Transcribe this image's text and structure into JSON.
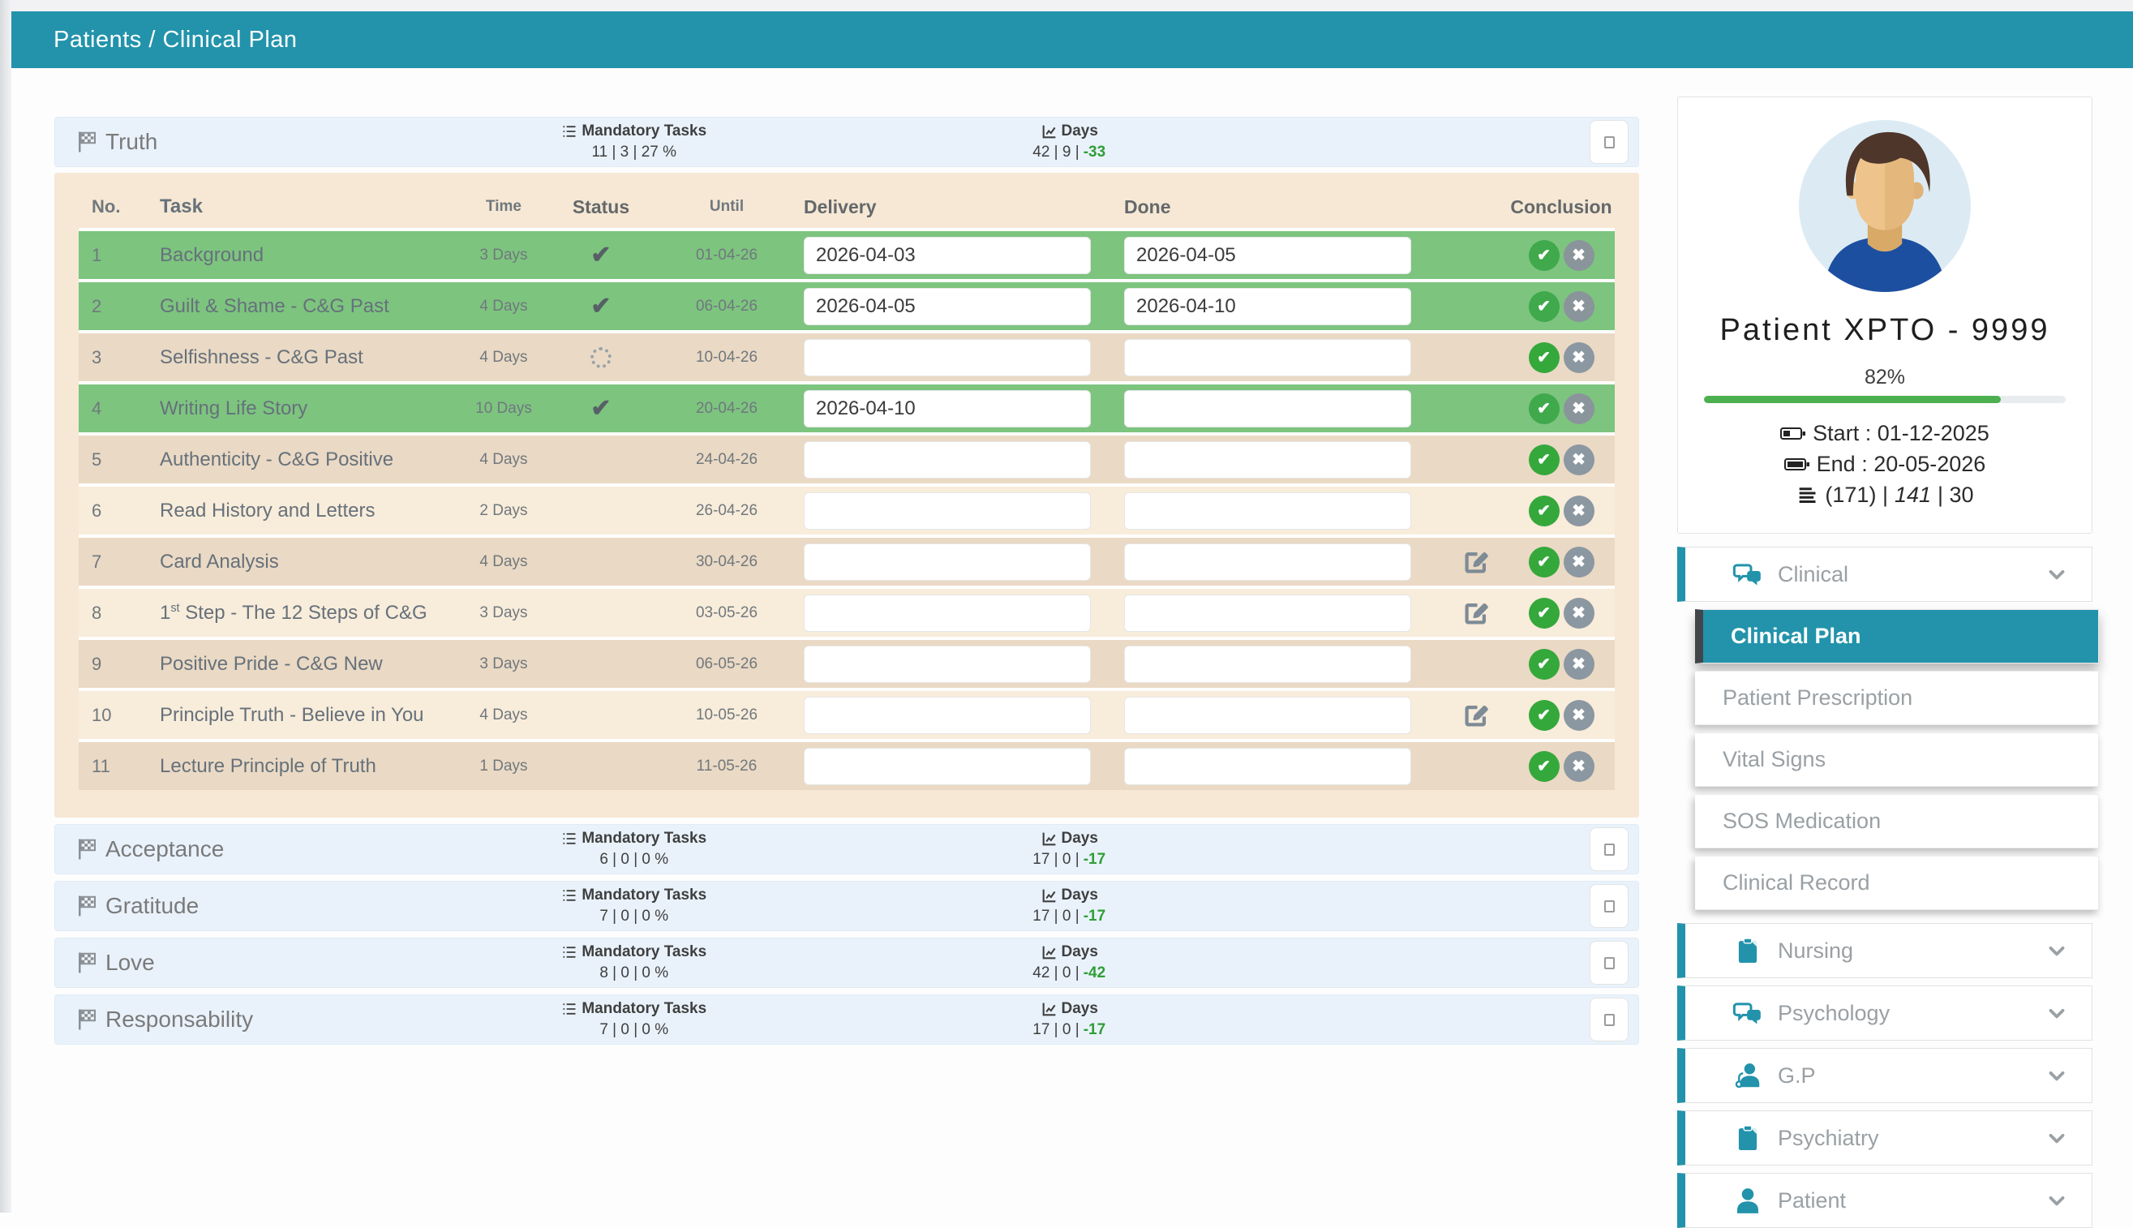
{
  "colors": {
    "accent": "#2293ab",
    "row_green": "#7dc47f",
    "row_dark": "#ead9c4",
    "row_light": "#f8ecda",
    "panel_blue": "#e9f2fb",
    "ok_green": "#35a83c",
    "no_gray": "#8b97a1",
    "progress_green": "#4caf50",
    "negative_days_green": "#2f9e36"
  },
  "breadcrumb": {
    "path": "Patients  /  Clinical Plan"
  },
  "labels": {
    "mandatory_tasks": "Mandatory Tasks",
    "days": "Days"
  },
  "truth": {
    "title": "Truth",
    "mandatory_value": "11 | 3 | 27 %",
    "days_value": "42 | 9 |",
    "days_negative": "-33",
    "columns": {
      "no": "No.",
      "task": "Task",
      "time": "Time",
      "status": "Status",
      "until": "Until",
      "delivery": "Delivery",
      "done": "Done",
      "conclusion": "Conclusion"
    },
    "rows": [
      {
        "no": "1",
        "task": "Background",
        "time": "3 Days",
        "status": "check",
        "until": "01-04-26",
        "delivery": "2026-04-03",
        "done": "2026-04-05",
        "highlight": "green",
        "edit": false
      },
      {
        "no": "2",
        "task": "Guilt & Shame - C&G Past",
        "time": "4 Days",
        "status": "check",
        "until": "06-04-26",
        "delivery": "2026-04-05",
        "done": "2026-04-10",
        "highlight": "green",
        "edit": false
      },
      {
        "no": "3",
        "task": "Selfishness - C&G Past",
        "time": "4 Days",
        "status": "spinner",
        "until": "10-04-26",
        "delivery": "",
        "done": "",
        "highlight": "dark",
        "edit": false
      },
      {
        "no": "4",
        "task": "Writing Life Story",
        "time": "10 Days",
        "status": "check",
        "until": "20-04-26",
        "delivery": "2026-04-10",
        "done": "",
        "highlight": "green",
        "edit": false
      },
      {
        "no": "5",
        "task": "Authenticity - C&G Positive",
        "time": "4 Days",
        "status": "",
        "until": "24-04-26",
        "delivery": "",
        "done": "",
        "highlight": "dark",
        "edit": false
      },
      {
        "no": "6",
        "task": "Read History and Letters",
        "time": "2 Days",
        "status": "",
        "until": "26-04-26",
        "delivery": "",
        "done": "",
        "highlight": "light",
        "edit": false
      },
      {
        "no": "7",
        "task": "Card Analysis",
        "time": "4 Days",
        "status": "",
        "until": "30-04-26",
        "delivery": "",
        "done": "",
        "highlight": "dark",
        "edit": true
      },
      {
        "no": "8",
        "task": "1st Step - The 12 Steps of C&G",
        "time": "3 Days",
        "status": "",
        "until": "03-05-26",
        "delivery": "",
        "done": "",
        "highlight": "light",
        "edit": true
      },
      {
        "no": "9",
        "task": "Positive Pride - C&G New",
        "time": "3 Days",
        "status": "",
        "until": "06-05-26",
        "delivery": "",
        "done": "",
        "highlight": "dark",
        "edit": false
      },
      {
        "no": "10",
        "task": "Principle Truth - Believe in You",
        "time": "4 Days",
        "status": "",
        "until": "10-05-26",
        "delivery": "",
        "done": "",
        "highlight": "light",
        "edit": true
      },
      {
        "no": "11",
        "task": "Lecture Principle of Truth",
        "time": "1 Days",
        "status": "",
        "until": "11-05-26",
        "delivery": "",
        "done": "",
        "highlight": "dark",
        "edit": false
      }
    ]
  },
  "summary_panels": [
    {
      "title": "Acceptance",
      "mandatory_value": "6 | 0 | 0 %",
      "days_value": "17 | 0 |",
      "days_negative": "-17"
    },
    {
      "title": "Gratitude",
      "mandatory_value": "7 | 0 | 0 %",
      "days_value": "17 | 0 |",
      "days_negative": "-17"
    },
    {
      "title": "Love",
      "mandatory_value": "8 | 0 | 0 %",
      "days_value": "42 | 0 |",
      "days_negative": "-42"
    },
    {
      "title": "Responsability",
      "mandatory_value": "7 | 0 | 0 %",
      "days_value": "17 | 0 |",
      "days_negative": "-17"
    }
  ],
  "patient": {
    "name": "Patient XPTO - 9999",
    "progress_percent": "82%",
    "progress_value": 82,
    "start": "Start : 01-12-2025",
    "end": "End : 20-05-2026",
    "sessions_prefix": "(171) |",
    "sessions_italic": "141",
    "sessions_suffix": "| 30"
  },
  "sidebar": {
    "items": [
      {
        "label": "Clinical",
        "icon": "chat",
        "type": "group"
      },
      {
        "label": "Clinical Plan",
        "type": "sub",
        "active": true
      },
      {
        "label": "Patient Prescription",
        "type": "sub"
      },
      {
        "label": "Vital Signs",
        "type": "sub"
      },
      {
        "label": "SOS Medication",
        "type": "sub"
      },
      {
        "label": "Clinical Record",
        "type": "sub"
      },
      {
        "label": "Nursing",
        "icon": "clipboard",
        "type": "group"
      },
      {
        "label": "Psychology",
        "icon": "chat",
        "type": "group"
      },
      {
        "label": "G.P",
        "icon": "doctor",
        "type": "group"
      },
      {
        "label": "Psychiatry",
        "icon": "clipboard",
        "type": "group"
      },
      {
        "label": "Patient",
        "icon": "person",
        "type": "group"
      }
    ]
  }
}
